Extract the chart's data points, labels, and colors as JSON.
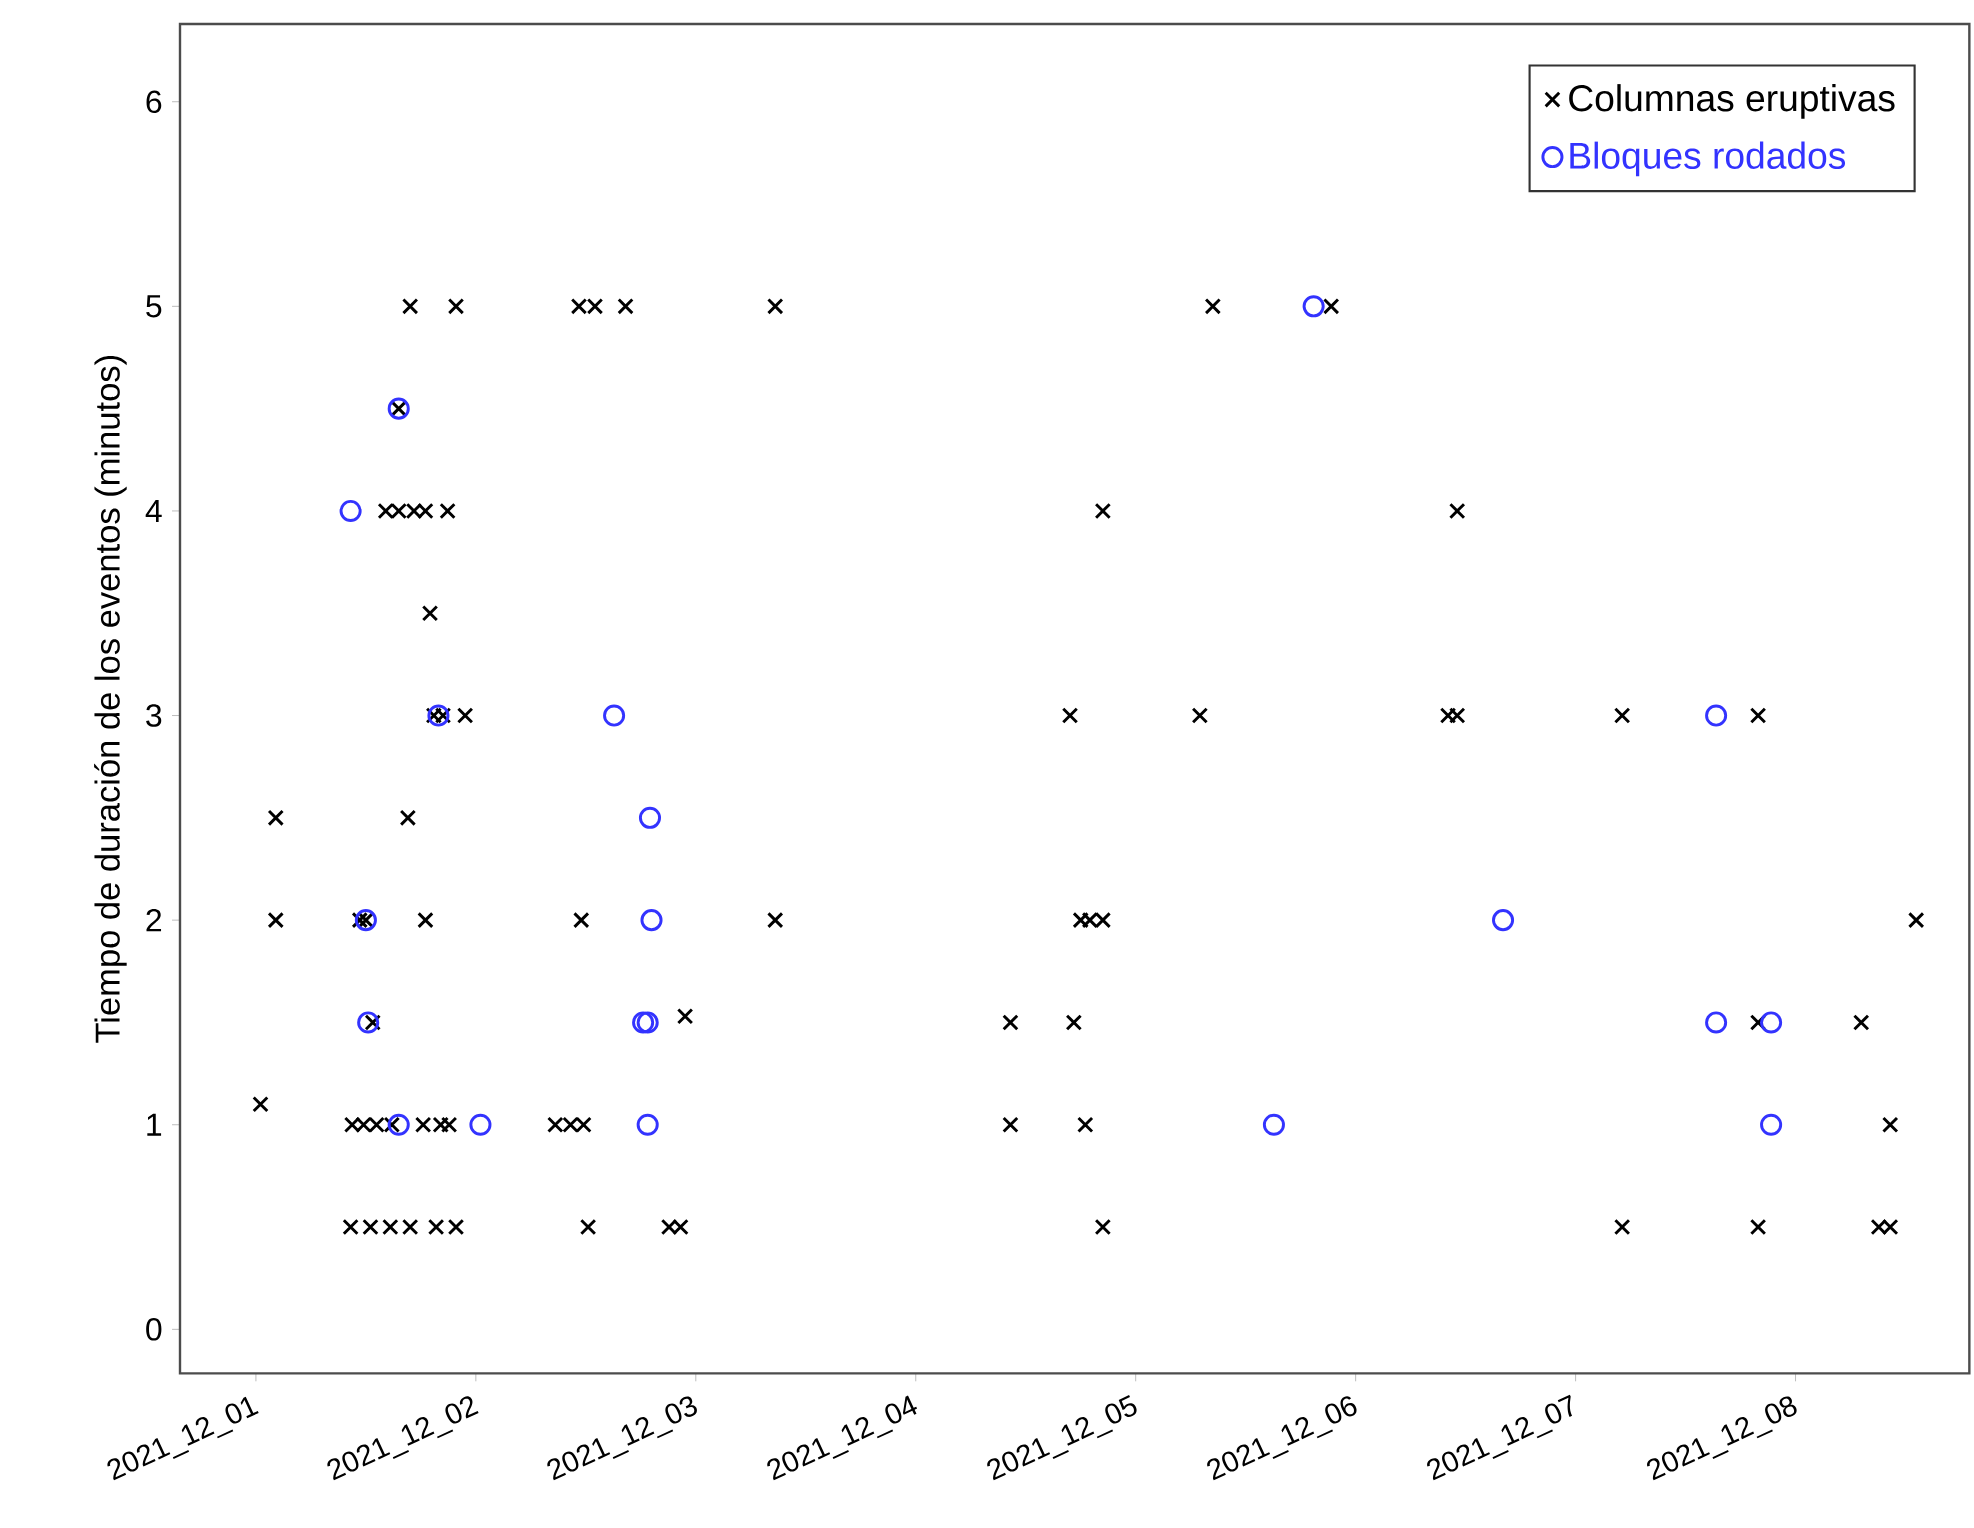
{
  "chart_data": {
    "type": "scatter",
    "ylabel": "Tiempo de duración de los eventos (minutos)",
    "xlim": [
      "2021-11-30T15:43",
      "2021-12-08T18:58"
    ],
    "ylim": [
      -0.215,
      6.38
    ],
    "xticks": [
      {
        "value": "2021-12-01",
        "label": "2021_12_01"
      },
      {
        "value": "2021-12-02",
        "label": "2021_12_02"
      },
      {
        "value": "2021-12-03",
        "label": "2021_12_03"
      },
      {
        "value": "2021-12-04",
        "label": "2021_12_04"
      },
      {
        "value": "2021-12-05",
        "label": "2021_12_05"
      },
      {
        "value": "2021-12-06",
        "label": "2021_12_06"
      },
      {
        "value": "2021-12-07",
        "label": "2021_12_07"
      },
      {
        "value": "2021-12-08",
        "label": "2021_12_08"
      }
    ],
    "yticks": [
      0,
      1,
      2,
      3,
      4,
      5,
      6
    ],
    "grid": false,
    "legend": "top right",
    "series": [
      {
        "name": "Columnas eruptivas",
        "color": "#000000",
        "marker": "cross",
        "x": [
          "2021-12-01T16:50",
          "2021-12-01T21:50",
          "2021-12-02T11:15",
          "2021-12-02T13:00",
          "2021-12-02T16:20",
          "2021-12-03T08:40",
          "2021-12-05T08:25",
          "2021-12-05T21:20",
          "2021-12-01T15:35",
          "2021-12-01T14:10",
          "2021-12-01T15:35",
          "2021-12-01T17:15",
          "2021-12-01T18:30",
          "2021-12-01T20:55",
          "2021-12-04T20:25",
          "2021-12-06T11:05",
          "2021-12-01T19:00",
          "2021-12-01T19:25",
          "2021-12-01T20:25",
          "2021-12-01T22:50",
          "2021-12-04T16:50",
          "2021-12-05T07:00",
          "2021-12-06T10:05",
          "2021-12-06T11:05",
          "2021-12-07T05:05",
          "2021-12-07T19:55",
          "2021-12-01T02:10",
          "2021-12-01T16:35",
          "2021-12-01T02:10",
          "2021-12-01T11:20",
          "2021-12-01T12:00",
          "2021-12-01T18:30",
          "2021-12-02T11:30",
          "2021-12-03T08:40",
          "2021-12-04T18:00",
          "2021-12-04T19:00",
          "2021-12-04T20:25",
          "2021-12-08T13:10",
          "2021-12-02T22:50",
          "2021-12-01T12:45",
          "2021-12-04T10:20",
          "2021-12-04T17:15",
          "2021-12-07T19:55",
          "2021-12-08T07:10",
          "2021-12-01T00:30",
          "2021-12-01T10:30",
          "2021-12-01T11:45",
          "2021-12-01T13:10",
          "2021-12-01T14:50",
          "2021-12-01T18:15",
          "2021-12-01T20:10",
          "2021-12-01T21:05",
          "2021-12-02T08:40",
          "2021-12-02T10:20",
          "2021-12-02T11:45",
          "2021-12-04T10:20",
          "2021-12-04T18:30",
          "2021-12-08T10:20",
          "2021-12-01T10:20",
          "2021-12-01T12:30",
          "2021-12-01T14:40",
          "2021-12-01T16:50",
          "2021-12-01T19:40",
          "2021-12-01T21:50",
          "2021-12-02T12:15",
          "2021-12-02T21:05",
          "2021-12-02T22:20",
          "2021-12-04T20:25",
          "2021-12-07T05:05",
          "2021-12-07T19:55",
          "2021-12-08T09:05",
          "2021-12-08T10:20"
        ],
        "values": [
          5,
          5,
          5,
          5,
          5,
          5,
          5,
          5,
          4.5,
          4,
          4,
          4,
          4,
          4,
          4,
          4,
          3.5,
          3,
          3,
          3,
          3,
          3,
          3,
          3,
          3,
          3,
          2.5,
          2.5,
          2,
          2,
          2,
          2,
          2,
          2,
          2,
          2,
          2,
          2,
          1.53,
          1.5,
          1.5,
          1.5,
          1.5,
          1.5,
          1.1,
          1,
          1,
          1,
          1,
          1,
          1,
          1,
          1,
          1,
          1,
          1,
          1,
          1,
          0.5,
          0.5,
          0.5,
          0.5,
          0.5,
          0.5,
          0.5,
          0.5,
          0.5,
          0.5,
          0.5,
          0.5,
          0.5,
          0.5
        ]
      },
      {
        "name": "Bloques rodados",
        "color": "#3333ff",
        "marker": "circle",
        "x": [
          "2021-12-05T19:25",
          "2021-12-01T15:35",
          "2021-12-01T10:20",
          "2021-12-01T19:55",
          "2021-12-02T15:05",
          "2021-12-07T15:20",
          "2021-12-02T19:00",
          "2021-12-01T12:00",
          "2021-12-02T19:10",
          "2021-12-06T16:05",
          "2021-12-01T12:15",
          "2021-12-02T18:15",
          "2021-12-02T18:45",
          "2021-12-07T15:20",
          "2021-12-07T21:20",
          "2021-12-01T15:35",
          "2021-12-02T00:30",
          "2021-12-02T18:45",
          "2021-12-05T15:05",
          "2021-12-07T21:20"
        ],
        "values": [
          5,
          4.5,
          4,
          3,
          3,
          3,
          2.5,
          2,
          2,
          2,
          1.5,
          1.5,
          1.5,
          1.5,
          1.5,
          1,
          1,
          1,
          1,
          1
        ]
      }
    ]
  }
}
